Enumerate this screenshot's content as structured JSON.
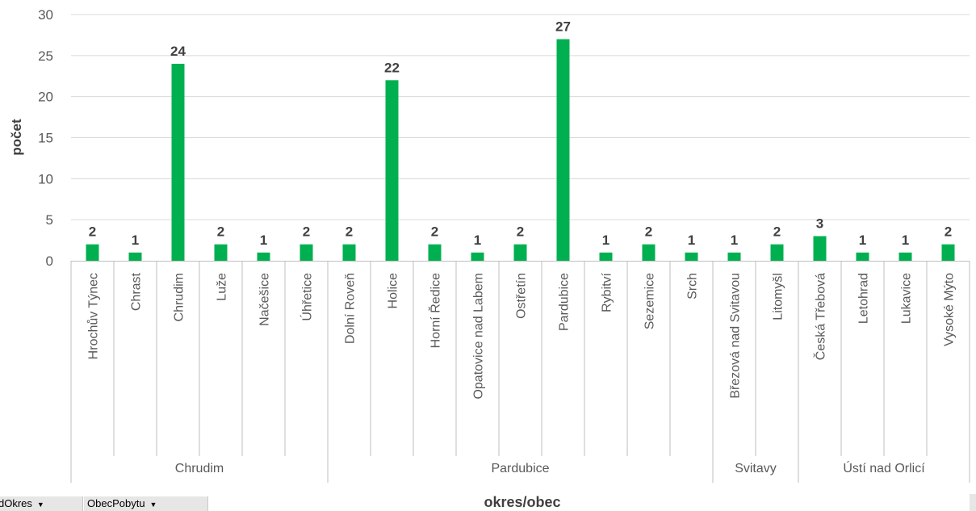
{
  "chart_data": {
    "type": "bar",
    "title": "",
    "xlabel": "okres/obec",
    "ylabel": "počet",
    "ylim": [
      0,
      30
    ],
    "yticks": [
      0,
      5,
      10,
      15,
      20,
      25,
      30
    ],
    "grid": true,
    "legend": "none",
    "bar_color": "#00b050",
    "groups": [
      {
        "name": "Chrudim",
        "categories": [
          "Hrochův Týnec",
          "Chrast",
          "Chrudim",
          "Luže",
          "Načešice",
          "Úhřetice"
        ],
        "values": [
          2,
          1,
          24,
          2,
          1,
          2
        ]
      },
      {
        "name": "Pardubice",
        "categories": [
          "Dolní Roveň",
          "Holice",
          "Horní Ředice",
          "Opatovice nad Labem",
          "Ostřetín",
          "Pardubice",
          "Rybitví",
          "Sezemice",
          "Srch"
        ],
        "values": [
          2,
          22,
          2,
          1,
          2,
          27,
          1,
          2,
          1
        ]
      },
      {
        "name": "Svitavy",
        "categories": [
          "Březová nad Svitavou",
          "Litomyšl"
        ],
        "values": [
          1,
          2
        ]
      },
      {
        "name": "Ústí nad Orlicí",
        "categories": [
          "Česká Třebová",
          "Letohrad",
          "Lukavice",
          "Vysoké Mýto"
        ],
        "values": [
          3,
          1,
          1,
          2
        ]
      }
    ]
  },
  "pivot_fields": {
    "okres_button": "dOkres",
    "obec_button": "ObecPobytu",
    "dropdown_icon": "dropdown-arrow-icon"
  }
}
